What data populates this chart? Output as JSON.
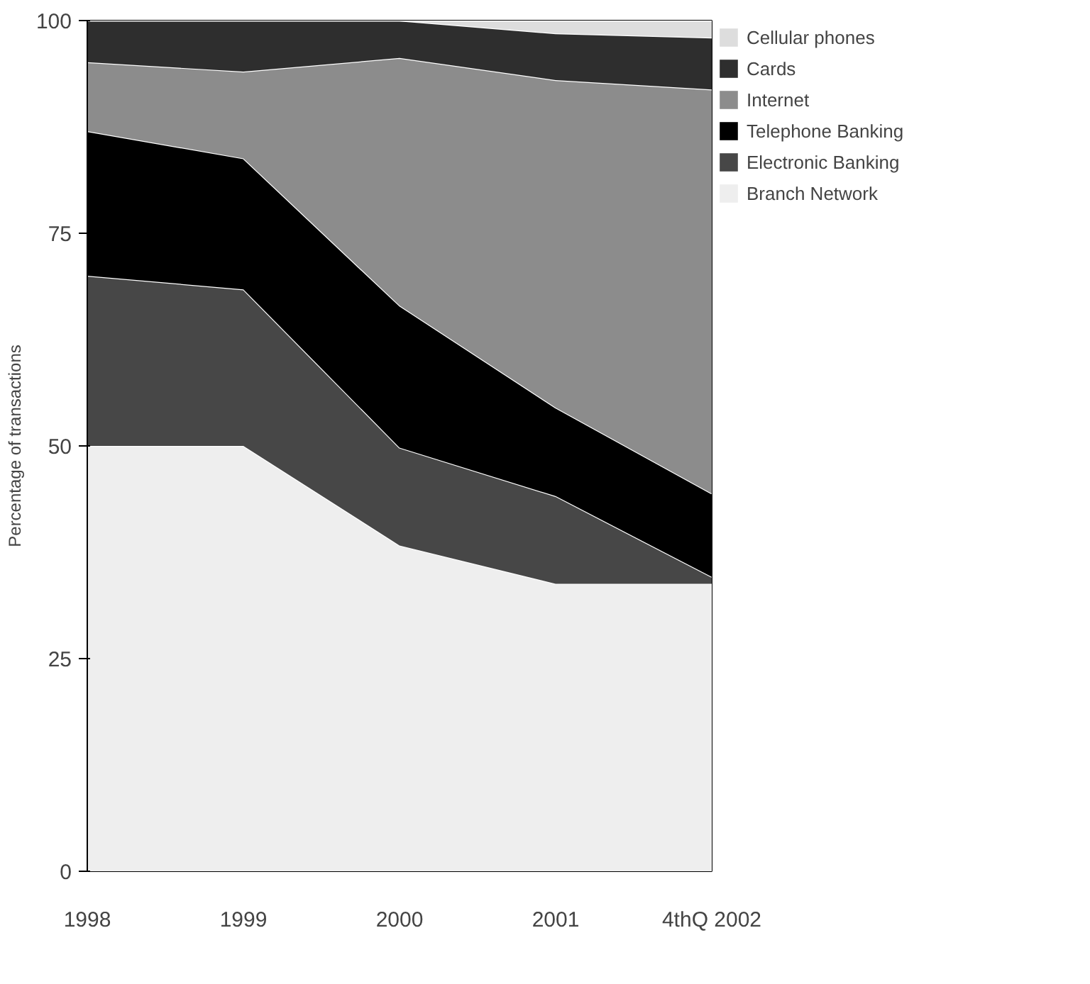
{
  "chart_data": {
    "type": "area",
    "stacked": true,
    "ylabel": "Percentage of transactions",
    "categories": [
      "1998",
      "1999",
      "2000",
      "2001",
      "4thQ 2002"
    ],
    "ylim": [
      0,
      100
    ],
    "yticks": [
      0,
      25,
      50,
      75,
      100
    ],
    "legend": "top right",
    "series": [
      {
        "name": "Branch Network",
        "color": "#eeeeee",
        "values": [
          50,
          50,
          38.3,
          33.8,
          33.8
        ]
      },
      {
        "name": "Electronic Banking",
        "color": "#474747",
        "values": [
          20,
          18.4,
          11.5,
          10.3,
          0.8
        ]
      },
      {
        "name": "Telephone Banking",
        "color": "#000000",
        "values": [
          17,
          15.4,
          16.7,
          10.4,
          9.8
        ]
      },
      {
        "name": "Internet",
        "color": "#8c8c8c",
        "values": [
          8.1,
          10.2,
          29.1,
          38.5,
          47.5
        ]
      },
      {
        "name": "Cards",
        "color": "#2e2e2e",
        "values": [
          4.9,
          6,
          4.4,
          5.5,
          6.1
        ]
      },
      {
        "name": "Cellular phones",
        "color": "#dddddd",
        "values": [
          0,
          0,
          0,
          1.5,
          2
        ]
      }
    ]
  }
}
